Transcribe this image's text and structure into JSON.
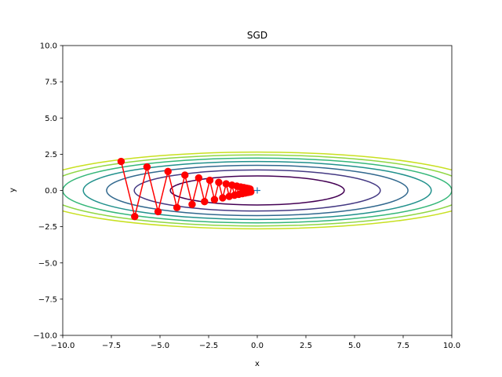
{
  "chart_data": {
    "type": "line",
    "title": "SGD",
    "xlabel": "x",
    "ylabel": "y",
    "xlim": [
      -10,
      10
    ],
    "ylim": [
      -10,
      10
    ],
    "x_ticks": [
      -10,
      -7.5,
      -5,
      -2.5,
      0,
      2.5,
      5,
      7.5,
      10
    ],
    "y_ticks": [
      -10,
      -7.5,
      -5,
      -2.5,
      0,
      2.5,
      5,
      7.5,
      10
    ],
    "x_tick_labels": [
      "−10.0",
      "−7.5",
      "−5.0",
      "−2.5",
      "0.0",
      "2.5",
      "5.0",
      "7.5",
      "10.0"
    ],
    "y_tick_labels": [
      "−10.0",
      "−7.5",
      "−5.0",
      "−2.5",
      "0.0",
      "2.5",
      "5.0",
      "7.5",
      "10.0"
    ],
    "grid": false,
    "contours": {
      "function": "x^2/20 + y^2",
      "levels": [
        1,
        2,
        3,
        4,
        5,
        6,
        7
      ],
      "colors": [
        "#440154",
        "#443983",
        "#31688e",
        "#21918c",
        "#35b779",
        "#90d743",
        "#c8e020"
      ]
    },
    "minimum_marker": {
      "x": 0,
      "y": 0,
      "symbol": "+",
      "color": "#1f77b4"
    },
    "series": [
      {
        "color": "#ff0000",
        "marker": "o",
        "points": [
          [
            -7.0,
            2.0
          ],
          [
            -6.3,
            -1.8
          ],
          [
            -5.67,
            1.62
          ],
          [
            -5.1,
            -1.46
          ],
          [
            -4.59,
            1.31
          ],
          [
            -4.13,
            -1.18
          ],
          [
            -3.72,
            1.06
          ],
          [
            -3.35,
            -0.96
          ],
          [
            -3.01,
            0.86
          ],
          [
            -2.71,
            -0.77
          ],
          [
            -2.44,
            0.7
          ],
          [
            -2.2,
            -0.63
          ],
          [
            -1.98,
            0.56
          ],
          [
            -1.78,
            -0.51
          ],
          [
            -1.6,
            0.46
          ],
          [
            -1.44,
            -0.41
          ],
          [
            -1.3,
            0.37
          ],
          [
            -1.17,
            -0.33
          ],
          [
            -1.05,
            0.3
          ],
          [
            -0.95,
            -0.27
          ],
          [
            -0.85,
            0.24
          ],
          [
            -0.77,
            -0.22
          ],
          [
            -0.69,
            0.2
          ],
          [
            -0.62,
            -0.18
          ],
          [
            -0.56,
            0.16
          ],
          [
            -0.5,
            -0.14
          ],
          [
            -0.45,
            0.13
          ],
          [
            -0.41,
            -0.12
          ],
          [
            -0.37,
            0.1
          ],
          [
            -0.33,
            -0.09
          ]
        ]
      }
    ]
  }
}
